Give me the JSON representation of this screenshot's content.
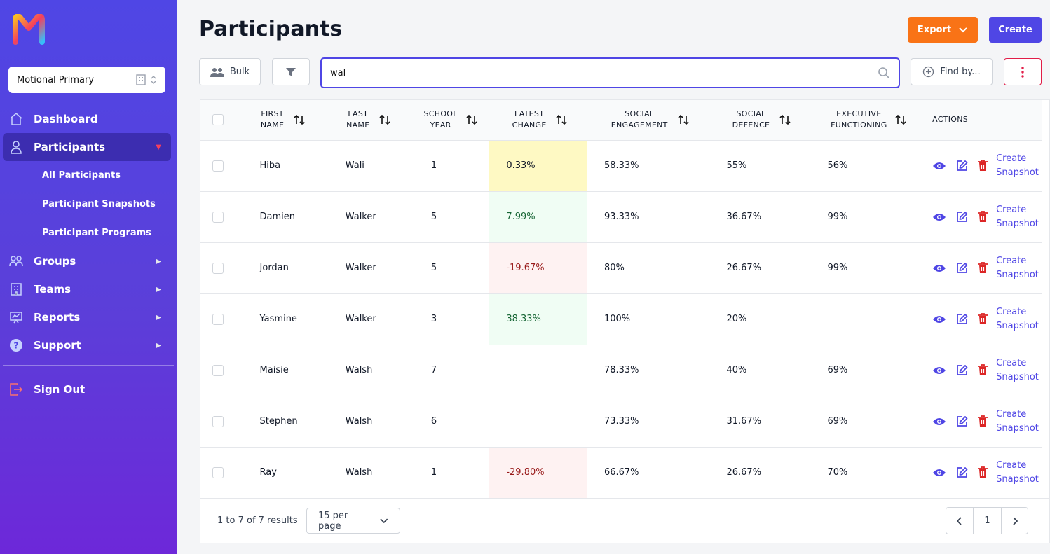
{
  "sidebar": {
    "org": "Motional Primary",
    "nav": [
      {
        "label": "Dashboard"
      },
      {
        "label": "Participants"
      },
      {
        "label": "Groups"
      },
      {
        "label": "Teams"
      },
      {
        "label": "Reports"
      },
      {
        "label": "Support"
      }
    ],
    "sub_items": [
      {
        "label": "All Participants"
      },
      {
        "label": "Participant Snapshots"
      },
      {
        "label": "Participant Programs"
      }
    ],
    "signout": "Sign Out"
  },
  "header": {
    "title": "Participants",
    "export_label": "Export",
    "create_label": "Create"
  },
  "toolbar": {
    "bulk_label": "Bulk",
    "search_value": "wal",
    "findby_label": "Find by..."
  },
  "table": {
    "columns": [
      "FIRST NAME",
      "LAST NAME",
      "SCHOOL YEAR",
      "LATEST CHANGE",
      "SOCIAL ENGAGEMENT",
      "SOCIAL DEFENCE",
      "EXECUTIVE FUNCTIONING",
      "ACTIONS"
    ],
    "rows": [
      {
        "first": "Hiba",
        "last": "Wali",
        "year": "1",
        "change": "0.33%",
        "engagement": "58.33%",
        "defence": "55%",
        "executive": "56%"
      },
      {
        "first": "Damien",
        "last": "Walker",
        "year": "5",
        "change": "7.99%",
        "engagement": "93.33%",
        "defence": "36.67%",
        "executive": "99%"
      },
      {
        "first": "Jordan",
        "last": "Walker",
        "year": "5",
        "change": "-19.67%",
        "engagement": "80%",
        "defence": "26.67%",
        "executive": "99%"
      },
      {
        "first": "Yasmine",
        "last": "Walker",
        "year": "3",
        "change": "38.33%",
        "engagement": "100%",
        "defence": "20%",
        "executive": ""
      },
      {
        "first": "Maisie",
        "last": "Walsh",
        "year": "7",
        "change": "",
        "engagement": "78.33%",
        "defence": "40%",
        "executive": "69%"
      },
      {
        "first": "Stephen",
        "last": "Walsh",
        "year": "6",
        "change": "",
        "engagement": "73.33%",
        "defence": "31.67%",
        "executive": "69%"
      },
      {
        "first": "Ray",
        "last": "Walsh",
        "year": "1",
        "change": "-29.80%",
        "engagement": "66.67%",
        "defence": "26.67%",
        "executive": "70%"
      }
    ],
    "snapshot_line1": "Create",
    "snapshot_line2": "Snapshot"
  },
  "footer": {
    "results": "1 to 7 of 7 results",
    "per_page": "15 per page",
    "page": "1"
  },
  "colors": {
    "accent": "#4f46e5",
    "export": "#f97316",
    "delete": "#dc2626",
    "change_yellow": "#fef9c3",
    "change_green": "#f0fdf4",
    "change_red": "#fef2f2"
  }
}
